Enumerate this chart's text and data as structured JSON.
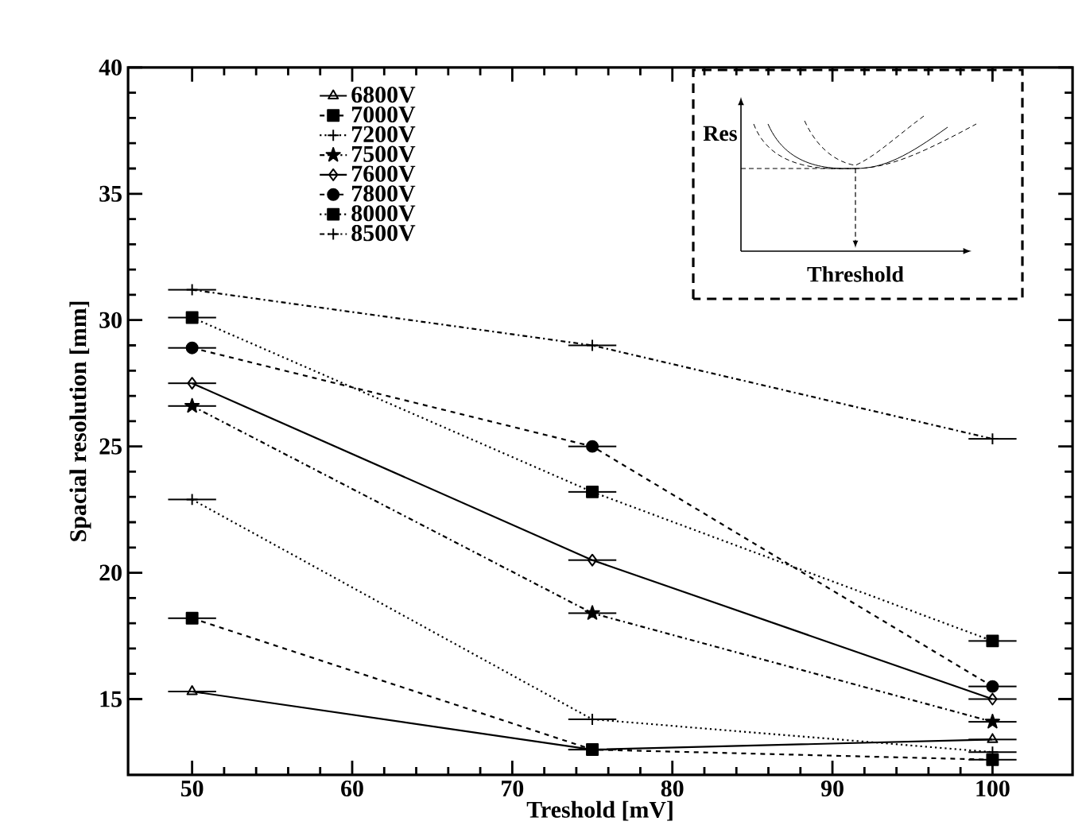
{
  "chart_data": {
    "type": "line",
    "xlabel": "Treshold [mV]",
    "ylabel": "Spacial resolution [mm]",
    "x": [
      50,
      75,
      100
    ],
    "xlim": [
      46,
      105
    ],
    "ylim": [
      12,
      40
    ],
    "xticks": [
      50,
      60,
      70,
      80,
      90,
      100
    ],
    "yticks": [
      15,
      20,
      25,
      30,
      35,
      40
    ],
    "legend": "top left",
    "grid": false,
    "annotations": [
      "Res",
      "Threshold"
    ],
    "series": [
      {
        "name": "6800V",
        "color": "#000000",
        "marker": "triangle",
        "line_style": "solid",
        "values": [
          15.3,
          13.0,
          13.4
        ],
        "xerrors": [
          1.5,
          1.5,
          1.5
        ]
      },
      {
        "name": "7000V",
        "color": "#000000",
        "marker": "square",
        "line_style": "dashed",
        "values": [
          18.2,
          13.0,
          12.6
        ],
        "xerrors": [
          1.5,
          1.5,
          1.5
        ]
      },
      {
        "name": "7200V",
        "color": "#000000",
        "marker": "cross",
        "line_style": "dotted",
        "values": [
          22.9,
          14.2,
          12.9
        ],
        "xerrors": [
          1.5,
          1.5,
          1.5
        ]
      },
      {
        "name": "7500V",
        "color": "#000000",
        "marker": "star",
        "line_style": "dashdot",
        "values": [
          26.6,
          18.4,
          14.1
        ],
        "xerrors": [
          1.5,
          1.5,
          1.5
        ]
      },
      {
        "name": "7600V",
        "color": "#000000",
        "marker": "diamond",
        "line_style": "solid",
        "values": [
          27.5,
          20.5,
          15.0
        ],
        "xerrors": [
          1.5,
          1.5,
          1.5
        ]
      },
      {
        "name": "7800V",
        "color": "#000000",
        "marker": "circle",
        "line_style": "dashed",
        "values": [
          28.9,
          25.0,
          15.5
        ],
        "xerrors": [
          1.5,
          1.5,
          1.5
        ]
      },
      {
        "name": "8000V",
        "color": "#000000",
        "marker": "square",
        "line_style": "dotted",
        "values": [
          30.1,
          23.2,
          17.3
        ],
        "xerrors": [
          1.5,
          1.5,
          1.5
        ]
      },
      {
        "name": "8500V",
        "color": "#000000",
        "marker": "cross",
        "line_style": "dashdot",
        "values": [
          31.2,
          29.0,
          25.3
        ],
        "xerrors": [
          1.5,
          1.5,
          1.5
        ]
      }
    ]
  }
}
